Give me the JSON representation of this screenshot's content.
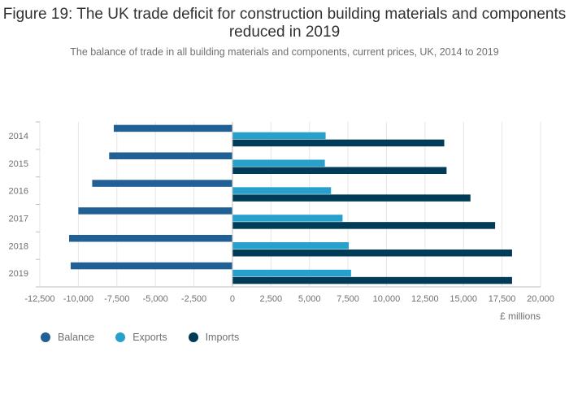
{
  "chart_data": {
    "type": "bar",
    "orientation": "horizontal",
    "title": "Figure 19: The UK trade deficit for construction building materials and components reduced in 2019",
    "subtitle": "The balance of trade in all building materials and components, current prices, UK, 2014 to 2019",
    "xlabel": "£ millions",
    "ylabel": "",
    "categories": [
      "2014",
      "2015",
      "2016",
      "2017",
      "2018",
      "2019"
    ],
    "xlim": [
      -12500,
      20000
    ],
    "xticks": [
      -12500,
      -10000,
      -7500,
      -5000,
      -2500,
      0,
      2500,
      5000,
      7500,
      10000,
      12500,
      15000,
      17500,
      20000
    ],
    "xtick_labels": [
      "-12,500",
      "-10,000",
      "-7,500",
      "-5,000",
      "-2,500",
      "0",
      "2,500",
      "5,000",
      "7,500",
      "10,000",
      "12,500",
      "15,000",
      "17,500",
      "20,000"
    ],
    "series": [
      {
        "name": "Balance",
        "color": "#206095",
        "values": [
          -7700,
          -8000,
          -9100,
          -10000,
          -10600,
          -10500
        ]
      },
      {
        "name": "Exports",
        "color": "#27a0cc",
        "values": [
          6050,
          6000,
          6400,
          7150,
          7550,
          7700
        ]
      },
      {
        "name": "Imports",
        "color": "#003c57",
        "values": [
          13750,
          13900,
          15450,
          17050,
          18150,
          18150
        ]
      }
    ],
    "legend_position": "bottom-left",
    "grid": true
  }
}
